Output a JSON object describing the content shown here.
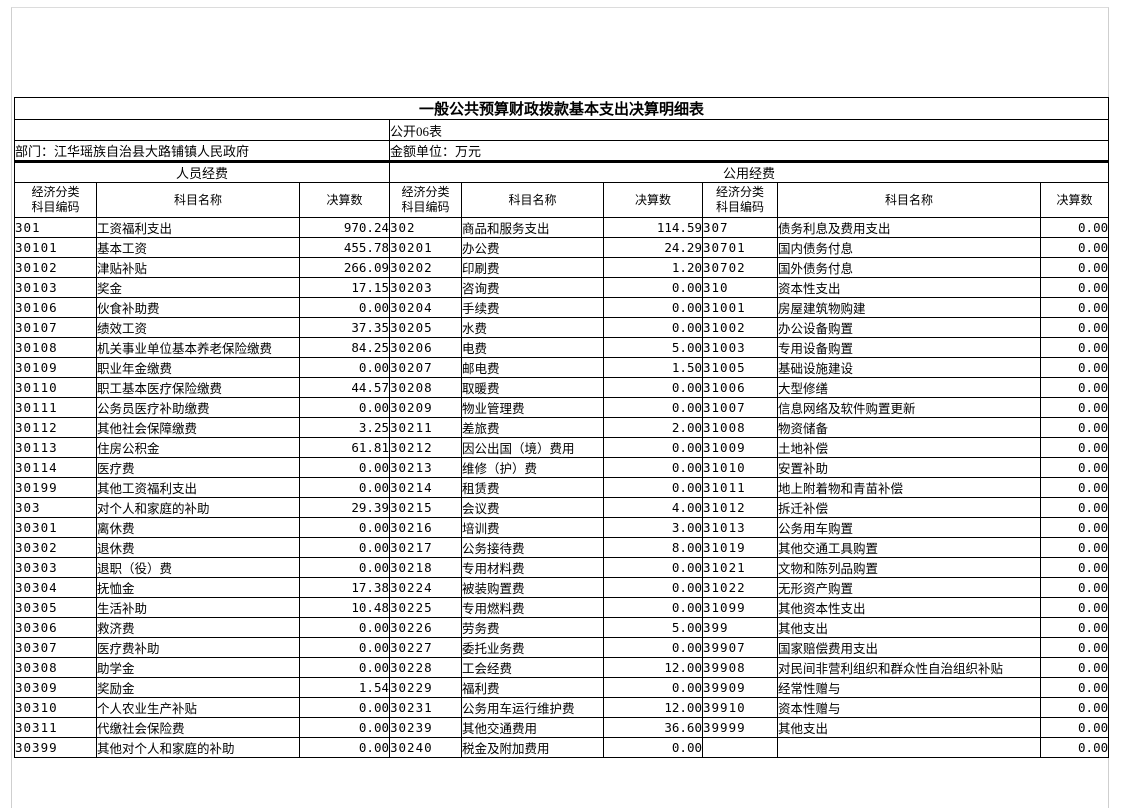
{
  "doc": {
    "title": "一般公共预算财政拨款基本支出决算明细表",
    "table_no": "公开06表",
    "department": "部门：江华瑶族自治县大路铺镇人民政府",
    "unit": "金额单位：万元",
    "section_personnel": "人员经费",
    "section_public": "公用经费",
    "col_headers": {
      "code_top": "经济分类",
      "code_bottom": "科目编码",
      "name": "科目名称",
      "value": "决算数"
    }
  },
  "table": {
    "rows": [
      [
        "301",
        "工资福利支出",
        "970.24",
        "302",
        "商品和服务支出",
        "114.59",
        "307",
        "债务利息及费用支出",
        "0.00"
      ],
      [
        "30101",
        "基本工资",
        "455.78",
        "30201",
        "办公费",
        "24.29",
        "30701",
        "国内债务付息",
        "0.00"
      ],
      [
        "30102",
        "津贴补贴",
        "266.09",
        "30202",
        "印刷费",
        "1.20",
        "30702",
        "国外债务付息",
        "0.00"
      ],
      [
        "30103",
        "奖金",
        "17.15",
        "30203",
        "咨询费",
        "0.00",
        "310",
        "资本性支出",
        "0.00"
      ],
      [
        "30106",
        "伙食补助费",
        "0.00",
        "30204",
        "手续费",
        "0.00",
        "31001",
        "房屋建筑物购建",
        "0.00"
      ],
      [
        "30107",
        "绩效工资",
        "37.35",
        "30205",
        "水费",
        "0.00",
        "31002",
        "办公设备购置",
        "0.00"
      ],
      [
        "30108",
        "机关事业单位基本养老保险缴费",
        "84.25",
        "30206",
        "电费",
        "5.00",
        "31003",
        "专用设备购置",
        "0.00"
      ],
      [
        "30109",
        "职业年金缴费",
        "0.00",
        "30207",
        "邮电费",
        "1.50",
        "31005",
        "基础设施建设",
        "0.00"
      ],
      [
        "30110",
        "职工基本医疗保险缴费",
        "44.57",
        "30208",
        "取暖费",
        "0.00",
        "31006",
        "大型修缮",
        "0.00"
      ],
      [
        "30111",
        "公务员医疗补助缴费",
        "0.00",
        "30209",
        "物业管理费",
        "0.00",
        "31007",
        "信息网络及软件购置更新",
        "0.00"
      ],
      [
        "30112",
        "其他社会保障缴费",
        "3.25",
        "30211",
        "差旅费",
        "2.00",
        "31008",
        "物资储备",
        "0.00"
      ],
      [
        "30113",
        "住房公积金",
        "61.81",
        "30212",
        "因公出国（境）费用",
        "0.00",
        "31009",
        "土地补偿",
        "0.00"
      ],
      [
        "30114",
        "医疗费",
        "0.00",
        "30213",
        "维修（护）费",
        "0.00",
        "31010",
        "安置补助",
        "0.00"
      ],
      [
        "30199",
        "其他工资福利支出",
        "0.00",
        "30214",
        "租赁费",
        "0.00",
        "31011",
        "地上附着物和青苗补偿",
        "0.00"
      ],
      [
        "303",
        "对个人和家庭的补助",
        "29.39",
        "30215",
        "会议费",
        "4.00",
        "31012",
        "拆迁补偿",
        "0.00"
      ],
      [
        "30301",
        "离休费",
        "0.00",
        "30216",
        "培训费",
        "3.00",
        "31013",
        "公务用车购置",
        "0.00"
      ],
      [
        "30302",
        "退休费",
        "0.00",
        "30217",
        "公务接待费",
        "8.00",
        "31019",
        "其他交通工具购置",
        "0.00"
      ],
      [
        "30303",
        "退职（役）费",
        "0.00",
        "30218",
        "专用材料费",
        "0.00",
        "31021",
        "文物和陈列品购置",
        "0.00"
      ],
      [
        "30304",
        "抚恤金",
        "17.38",
        "30224",
        "被装购置费",
        "0.00",
        "31022",
        "无形资产购置",
        "0.00"
      ],
      [
        "30305",
        "生活补助",
        "10.48",
        "30225",
        "专用燃料费",
        "0.00",
        "31099",
        "其他资本性支出",
        "0.00"
      ],
      [
        "30306",
        "救济费",
        "0.00",
        "30226",
        "劳务费",
        "5.00",
        "399",
        "其他支出",
        "0.00"
      ],
      [
        "30307",
        "医疗费补助",
        "0.00",
        "30227",
        "委托业务费",
        "0.00",
        "39907",
        "国家赔偿费用支出",
        "0.00"
      ],
      [
        "30308",
        "助学金",
        "0.00",
        "30228",
        "工会经费",
        "12.00",
        "39908",
        "对民间非营利组织和群众性自治组织补贴",
        "0.00"
      ],
      [
        "30309",
        "奖励金",
        "1.54",
        "30229",
        "福利费",
        "0.00",
        "39909",
        "经常性赠与",
        "0.00"
      ],
      [
        "30310",
        "个人农业生产补贴",
        "0.00",
        "30231",
        "公务用车运行维护费",
        "12.00",
        "39910",
        "资本性赠与",
        "0.00"
      ],
      [
        "30311",
        "代缴社会保险费",
        "0.00",
        "30239",
        "其他交通费用",
        "36.60",
        "39999",
        "其他支出",
        "0.00"
      ],
      [
        "30399",
        "其他对个人和家庭的补助",
        "0.00",
        "30240",
        "税金及附加费用",
        "0.00",
        "",
        "",
        "0.00"
      ]
    ]
  }
}
